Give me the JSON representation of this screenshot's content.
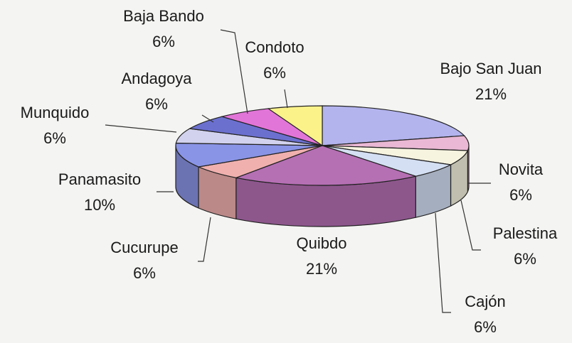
{
  "chart_data": {
    "type": "pie",
    "style": "3d-exploded-none",
    "slices": [
      {
        "label": "Bajo San Juan",
        "pct": "21%",
        "value": 21,
        "color": "#b3b4ee"
      },
      {
        "label": "Novita",
        "pct": "6%",
        "value": 6,
        "color": "#eab8d4"
      },
      {
        "label": "Palestina",
        "pct": "6%",
        "value": 6,
        "color": "#f6f3df"
      },
      {
        "label": "Cajón",
        "pct": "6%",
        "value": 6,
        "color": "#d4dff3"
      },
      {
        "label": "Quibdo",
        "pct": "21%",
        "value": 21,
        "color": "#b56fb3"
      },
      {
        "label": "Cucurupe",
        "pct": "6%",
        "value": 6,
        "color": "#f0b0ae"
      },
      {
        "label": "Panamasito",
        "pct": "10%",
        "value": 10,
        "color": "#8a94e6"
      },
      {
        "label": "Munquido",
        "pct": "6%",
        "value": 6,
        "color": "#d2d2ee"
      },
      {
        "label": "Andagoya",
        "pct": "6%",
        "value": 6,
        "color": "#6b70cf"
      },
      {
        "label": "Baja Bando",
        "pct": "6%",
        "value": 6,
        "color": "#e275d8"
      },
      {
        "label": "Condoto",
        "pct": "6%",
        "value": 6,
        "color": "#fbf38a"
      }
    ]
  }
}
